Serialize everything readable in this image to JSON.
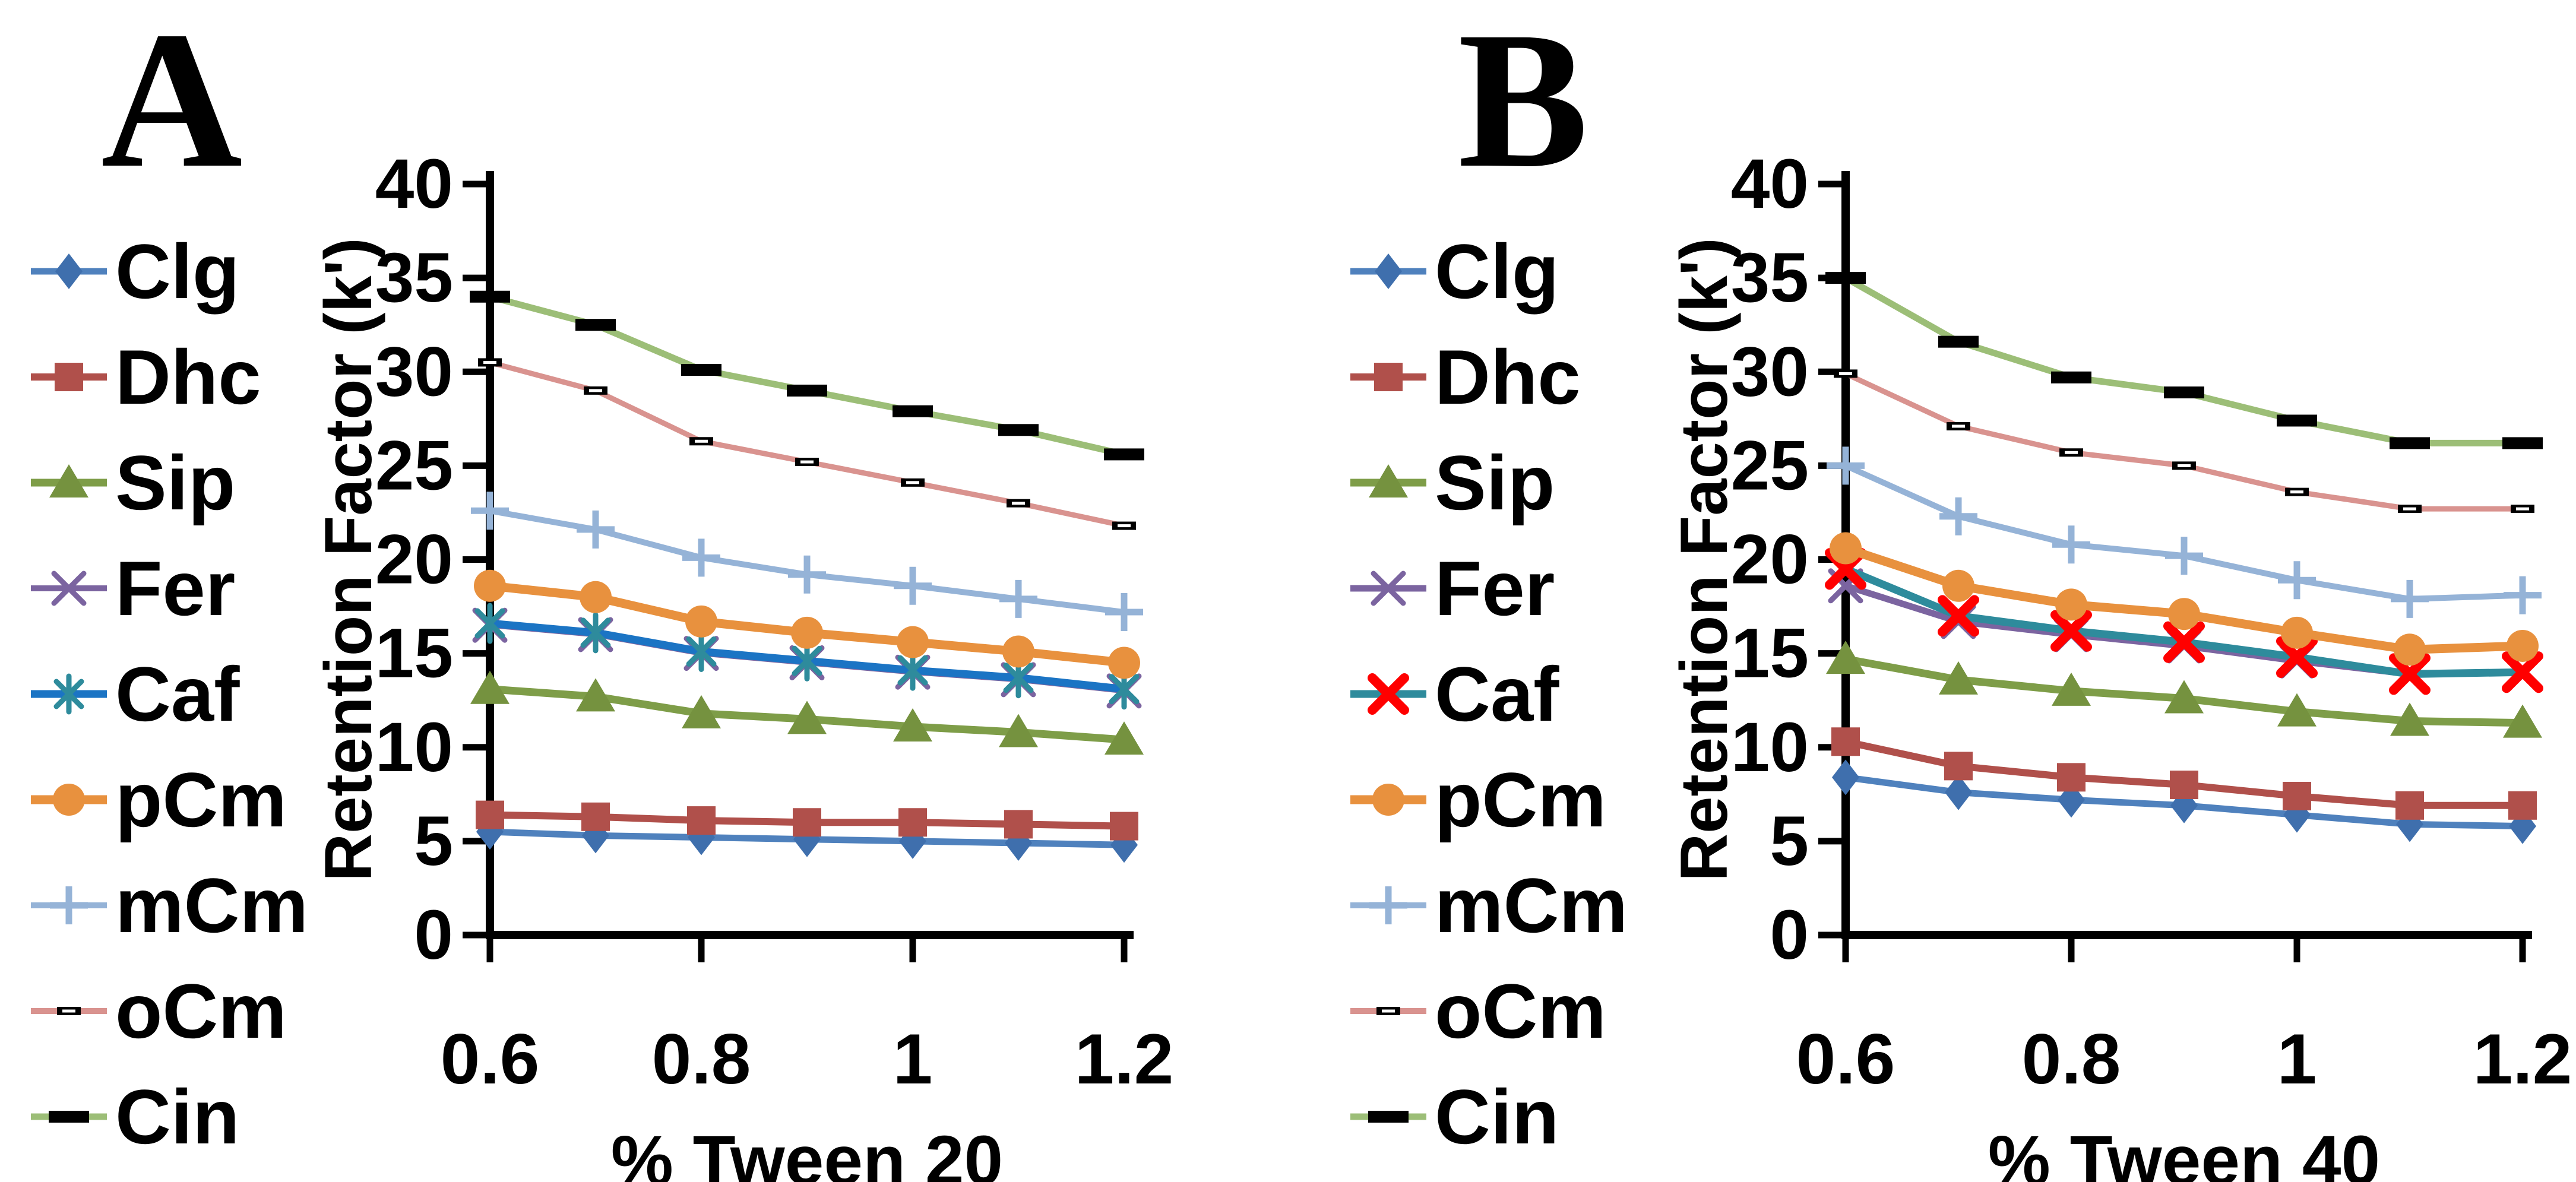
{
  "figure": {
    "background": "#ffffff"
  },
  "chart_data": [
    {
      "type": "line",
      "title": "A",
      "xlabel": "% Tween 20",
      "ylabel": "Retention Factor (k')",
      "x": [
        0.6,
        0.7,
        0.8,
        0.9,
        1.0,
        1.1,
        1.2
      ],
      "x_tick_values": [
        0.6,
        0.8,
        1.0,
        1.2
      ],
      "x_tick_labels": [
        "0.6",
        "0.8",
        "1",
        "1.2"
      ],
      "y_tick_labels": [
        "40",
        "35",
        "30",
        "25",
        "20",
        "15",
        "10",
        "5",
        "0"
      ],
      "ylim": [
        0,
        40
      ],
      "grid": "off",
      "legend_position": "left",
      "series": [
        {
          "name": "Clg",
          "values": [
            5.5,
            5.3,
            5.2,
            5.1,
            5.0,
            4.9,
            4.8
          ]
        },
        {
          "name": "Dhc",
          "values": [
            6.4,
            6.3,
            6.1,
            6.0,
            6.0,
            5.9,
            5.8
          ]
        },
        {
          "name": "Sip",
          "values": [
            13.1,
            12.7,
            11.8,
            11.5,
            11.1,
            10.8,
            10.4
          ]
        },
        {
          "name": "Fer",
          "values": [
            16.5,
            16.0,
            15.0,
            14.5,
            14.0,
            13.6,
            13.0
          ]
        },
        {
          "name": "Caf",
          "values": [
            16.6,
            16.1,
            15.1,
            14.6,
            14.1,
            13.7,
            13.1
          ]
        },
        {
          "name": "pCm",
          "values": [
            18.6,
            18.0,
            16.7,
            16.1,
            15.6,
            15.1,
            14.5
          ]
        },
        {
          "name": "mCm",
          "values": [
            22.6,
            21.6,
            20.1,
            19.2,
            18.6,
            17.9,
            17.2
          ]
        },
        {
          "name": "oCm",
          "values": [
            30.5,
            29.0,
            26.3,
            25.2,
            24.1,
            23.0,
            21.8
          ]
        },
        {
          "name": "Cin",
          "values": [
            34.0,
            32.5,
            30.1,
            29.0,
            27.9,
            26.9,
            25.6
          ]
        }
      ]
    },
    {
      "type": "line",
      "title": "B",
      "xlabel": "% Tween 40",
      "ylabel": "Retention Factor (k')",
      "x": [
        0.6,
        0.7,
        0.8,
        0.9,
        1.0,
        1.1,
        1.2
      ],
      "x_tick_values": [
        0.6,
        0.8,
        1.0,
        1.2
      ],
      "x_tick_labels": [
        "0.6",
        "0.8",
        "1",
        "1.2"
      ],
      "y_tick_labels": [
        "40",
        "35",
        "30",
        "25",
        "20",
        "15",
        "10",
        "5",
        "0"
      ],
      "ylim": [
        0,
        40
      ],
      "grid": "off",
      "legend_position": "left",
      "series": [
        {
          "name": "Clg",
          "values": [
            8.4,
            7.6,
            7.2,
            6.9,
            6.4,
            5.9,
            5.8
          ]
        },
        {
          "name": "Dhc",
          "values": [
            10.3,
            9.0,
            8.4,
            8.0,
            7.4,
            6.9,
            6.9
          ]
        },
        {
          "name": "Sip",
          "values": [
            14.7,
            13.6,
            13.0,
            12.6,
            11.9,
            11.4,
            11.3
          ]
        },
        {
          "name": "Fer",
          "values": [
            18.6,
            16.7,
            16.0,
            15.4,
            14.6,
            13.9,
            14.0
          ]
        },
        {
          "name": "Caf",
          "values": [
            19.5,
            17.0,
            16.2,
            15.6,
            14.8,
            13.9,
            14.0
          ]
        },
        {
          "name": "pCm",
          "values": [
            20.6,
            18.6,
            17.6,
            17.1,
            16.1,
            15.2,
            15.4
          ]
        },
        {
          "name": "mCm",
          "values": [
            25.0,
            22.3,
            20.8,
            20.2,
            18.9,
            17.9,
            18.1
          ]
        },
        {
          "name": "oCm",
          "values": [
            29.9,
            27.1,
            25.7,
            25.0,
            23.6,
            22.7,
            22.7
          ]
        },
        {
          "name": "Cin",
          "values": [
            35.0,
            31.6,
            29.7,
            28.9,
            27.4,
            26.2,
            26.2
          ]
        }
      ]
    }
  ],
  "panels": [
    {
      "label": "A",
      "series_styles": {
        "Clg": {
          "line_color": "#4F81BD",
          "line_width": 11,
          "marker": "diamond",
          "marker_color": "#3F6FAD"
        },
        "Dhc": {
          "line_color": "#B0504B",
          "line_width": 12,
          "marker": "square",
          "marker_color": "#B0504B"
        },
        "Sip": {
          "line_color": "#7E9D48",
          "line_width": 13,
          "marker": "triangle",
          "marker_color": "#75923F"
        },
        "Fer": {
          "line_color": "#7B64A0",
          "line_width": 9,
          "marker": "x",
          "marker_color": "#7B64A0"
        },
        "Caf": {
          "line_color": "#1B74C4",
          "line_width": 13,
          "marker": "asterisk",
          "marker_color": "#2E8B9C"
        },
        "pCm": {
          "line_color": "#E8913E",
          "line_width": 15,
          "marker": "circle",
          "marker_color": "#E8913E"
        },
        "mCm": {
          "line_color": "#95B3D7",
          "line_width": 10,
          "marker": "plus",
          "marker_color": "#95B3D7"
        },
        "oCm": {
          "line_color": "#D9938F",
          "line_width": 9,
          "marker": "dash-small",
          "marker_color": "#000000"
        },
        "Cin": {
          "line_color": "#9CBE77",
          "line_width": 11,
          "marker": "dash",
          "marker_color": "#000000"
        }
      }
    },
    {
      "label": "B",
      "series_styles": {
        "Clg": {
          "line_color": "#4F81BD",
          "line_width": 11,
          "marker": "diamond",
          "marker_color": "#3F6FAD"
        },
        "Dhc": {
          "line_color": "#B0504B",
          "line_width": 12,
          "marker": "square",
          "marker_color": "#B0504B"
        },
        "Sip": {
          "line_color": "#7E9D48",
          "line_width": 13,
          "marker": "triangle",
          "marker_color": "#75923F"
        },
        "Fer": {
          "line_color": "#7B64A0",
          "line_width": 11,
          "marker": "x",
          "marker_color": "#7B64A0"
        },
        "Caf": {
          "line_color": "#2E8B9C",
          "line_width": 13,
          "marker": "x-bold",
          "marker_color": "#FF0000"
        },
        "pCm": {
          "line_color": "#E8913E",
          "line_width": 15,
          "marker": "circle",
          "marker_color": "#E8913E"
        },
        "mCm": {
          "line_color": "#95B3D7",
          "line_width": 10,
          "marker": "plus",
          "marker_color": "#95B3D7"
        },
        "oCm": {
          "line_color": "#D9938F",
          "line_width": 9,
          "marker": "dash-small",
          "marker_color": "#000000"
        },
        "Cin": {
          "line_color": "#9CBE77",
          "line_width": 11,
          "marker": "dash",
          "marker_color": "#000000"
        }
      }
    }
  ]
}
